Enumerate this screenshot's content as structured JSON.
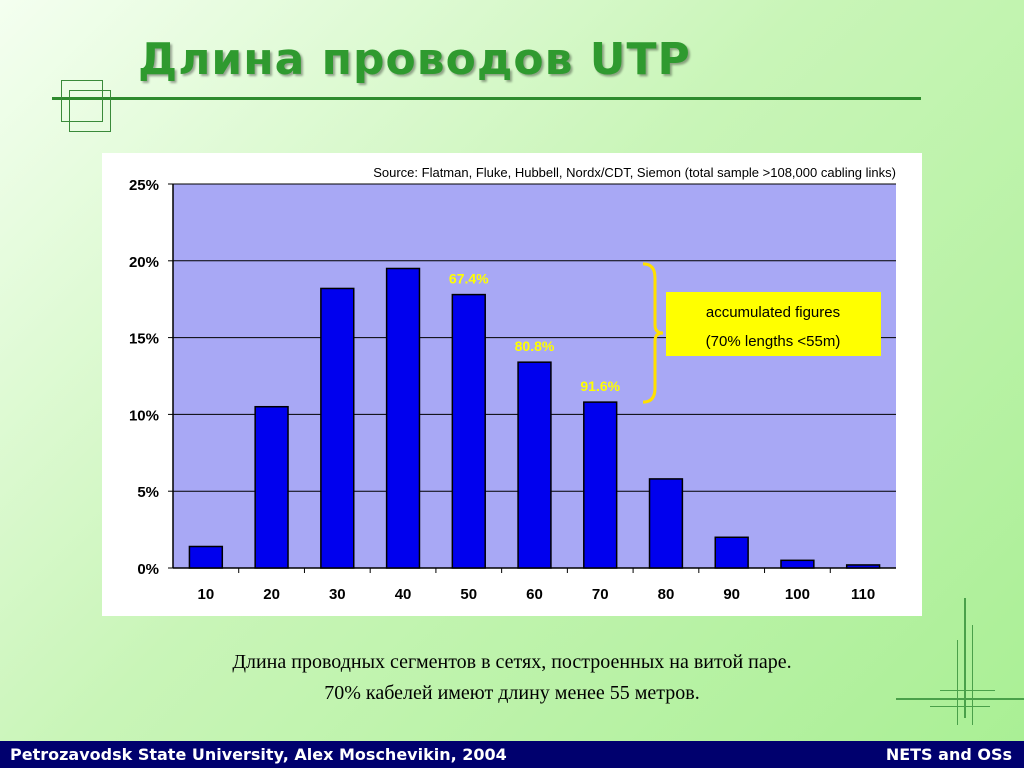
{
  "slide": {
    "title": "Длина проводов UTP",
    "caption_line1": "Длина проводных сегментов в сетях, построенных на витой паре.",
    "caption_line2": "70% кабелей имеют длину менее 55 метров.",
    "footer_left": "Petrozavodsk State University, Alex Moschevikin, 2004",
    "footer_right": "NETS and OSs"
  },
  "colors": {
    "plot_bg": "#a8a8f5",
    "bar": "#0000ee",
    "annotation_text": "#ffff00",
    "callout_bg": "#ffff00",
    "bracket": "#ffe000",
    "title": "#2f9a2f",
    "footer_bg": "#00006e"
  },
  "chart_data": {
    "type": "bar",
    "title": "Source: Flatman, Fluke, Hubbell, Nordx/CDT, Siemon (total sample >108,000 cabling links)",
    "categories": [
      "10",
      "20",
      "30",
      "40",
      "50",
      "60",
      "70",
      "80",
      "90",
      "100",
      "110"
    ],
    "values": [
      1.4,
      10.5,
      18.2,
      19.5,
      17.8,
      13.4,
      10.8,
      5.8,
      2.0,
      0.5,
      0.2
    ],
    "ylim": [
      0,
      25
    ],
    "yticks": [
      "0%",
      "5%",
      "10%",
      "15%",
      "20%",
      "25%"
    ],
    "grid": true,
    "bar_labels": [
      {
        "category": "50",
        "text": "67.4%"
      },
      {
        "category": "60",
        "text": "80.8%"
      },
      {
        "category": "70",
        "text": "91.6%"
      }
    ],
    "callout": {
      "line1": "accumulated figures",
      "line2": "(70% lengths <55m)"
    }
  }
}
